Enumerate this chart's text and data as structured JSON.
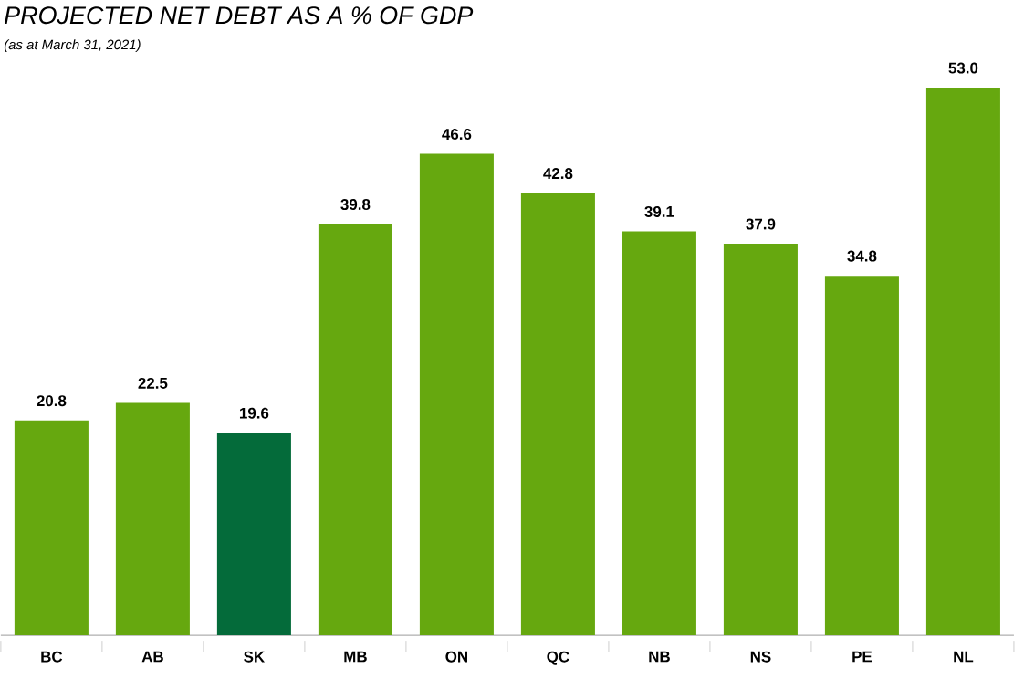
{
  "chart_data": {
    "type": "bar",
    "title": "PROJECTED NET DEBT AS A % OF GDP",
    "subtitle": "(as at March 31, 2021)",
    "categories": [
      "BC",
      "AB",
      "SK",
      "MB",
      "ON",
      "QC",
      "NB",
      "NS",
      "PE",
      "NL"
    ],
    "values": [
      20.8,
      22.5,
      19.6,
      39.8,
      46.6,
      42.8,
      39.1,
      37.9,
      34.8,
      53.0
    ],
    "colors": [
      "#66a80f",
      "#66a80f",
      "#046b3a",
      "#66a80f",
      "#66a80f",
      "#66a80f",
      "#66a80f",
      "#66a80f",
      "#66a80f",
      "#66a80f"
    ],
    "value_labels": [
      "20.8",
      "22.5",
      "19.6",
      "39.8",
      "46.6",
      "42.8",
      "39.1",
      "37.9",
      "34.8",
      "53.0"
    ]
  }
}
